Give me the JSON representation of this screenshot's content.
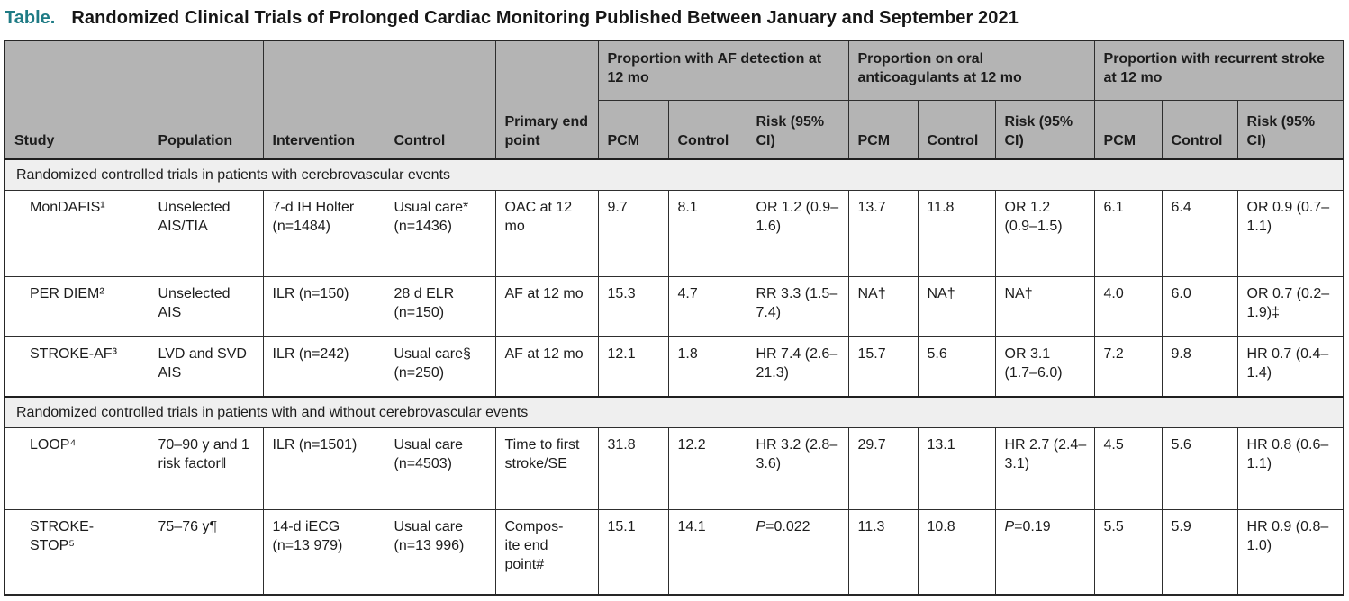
{
  "title": {
    "label": "Table.",
    "text": "Randomized Clinical Trials of Prolonged Cardiac Monitoring Published Between January and September 2021"
  },
  "colors": {
    "accent": "#1f7b85",
    "header_bg": "#b4b4b4",
    "section_bg": "#efefef",
    "border": "#2e2e2e"
  },
  "table": {
    "base_columns": [
      "Study",
      "Population",
      "Intervention",
      "Control",
      "Primary end point"
    ],
    "groups": [
      {
        "label": "Proportion with AF detection at 12 mo",
        "sub_columns": [
          "PCM",
          "Control",
          "Risk (95% CI)"
        ]
      },
      {
        "label": "Proportion on oral anticoagulants at 12 mo",
        "sub_columns": [
          "PCM",
          "Control",
          "Risk (95% CI)"
        ]
      },
      {
        "label": "Proportion with recurrent stroke at 12 mo",
        "sub_columns": [
          "PCM",
          "Control",
          "Risk (95% CI)"
        ]
      }
    ],
    "sections": [
      {
        "label": "Randomized controlled trials in patients with cerebrovascular events",
        "rows": [
          {
            "study": "MonDAFIS¹",
            "population": "Unselected AIS/TIA",
            "intervention": "7-d IH Holter (n=1484)",
            "control": "Usual care* (n=1436)",
            "primary_end_point": "OAC at 12 mo",
            "af_detection": {
              "pcm": "9.7",
              "control": "8.1",
              "risk": "OR 1.2 (0.9–1.6)"
            },
            "oral_anticoagulants": {
              "pcm": "13.7",
              "control": "11.8",
              "risk": "OR 1.2 (0.9–1.5)"
            },
            "recurrent_stroke": {
              "pcm": "6.1",
              "control": "6.4",
              "risk": "OR 0.9 (0.7–1.1)"
            }
          },
          {
            "study": "PER DIEM²",
            "population": "Unselected AIS",
            "intervention": "ILR (n=150)",
            "control": "28 d ELR (n=150)",
            "primary_end_point": "AF at 12 mo",
            "af_detection": {
              "pcm": "15.3",
              "control": "4.7",
              "risk": "RR 3.3 (1.5–7.4)"
            },
            "oral_anticoagulants": {
              "pcm": "NA†",
              "control": "NA†",
              "risk": "NA†"
            },
            "recurrent_stroke": {
              "pcm": "4.0",
              "control": "6.0",
              "risk": "OR 0.7 (0.2–1.9)‡"
            }
          },
          {
            "study": "STROKE-AF³",
            "population": "LVD and SVD AIS",
            "intervention": "ILR (n=242)",
            "control": "Usual care§ (n=250)",
            "primary_end_point": "AF at 12 mo",
            "af_detection": {
              "pcm": "12.1",
              "control": "1.8",
              "risk": "HR 7.4 (2.6–21.3)"
            },
            "oral_anticoagulants": {
              "pcm": "15.7",
              "control": "5.6",
              "risk": "OR 3.1 (1.7–6.0)"
            },
            "recurrent_stroke": {
              "pcm": "7.2",
              "control": "9.8",
              "risk": "HR 0.7 (0.4–1.4)"
            }
          }
        ]
      },
      {
        "label": "Randomized controlled trials in patients with and without cerebrovascular events",
        "rows": [
          {
            "study": "LOOP⁴",
            "population": "70–90 y and 1 risk factor‖",
            "intervention": "ILR (n=1501)",
            "control": "Usual care (n=4503)",
            "primary_end_point": "Time to first stroke/SE",
            "af_detection": {
              "pcm": "31.8",
              "control": "12.2",
              "risk": "HR 3.2 (2.8–3.6)"
            },
            "oral_anticoagulants": {
              "pcm": "29.7",
              "control": "13.1",
              "risk": "HR 2.7 (2.4–3.1)"
            },
            "recurrent_stroke": {
              "pcm": "4.5",
              "control": "5.6",
              "risk": "HR 0.8 (0.6–1.1)"
            }
          },
          {
            "study": "STROKE-\nSTOP⁵",
            "population": "75–76 y¶",
            "intervention": "14-d iECG (n=13 979)",
            "control": "Usual care (n=13 996)",
            "primary_end_point": "Compos-\nite end point#",
            "af_detection": {
              "pcm": "15.1",
              "control": "14.1",
              "risk": "P=0.022"
            },
            "oral_anticoagulants": {
              "pcm": "11.3",
              "control": "10.8",
              "risk": "P=0.19"
            },
            "recurrent_stroke": {
              "pcm": "5.5",
              "control": "5.9",
              "risk": "HR 0.9 (0.8–1.0)"
            }
          }
        ]
      }
    ]
  }
}
